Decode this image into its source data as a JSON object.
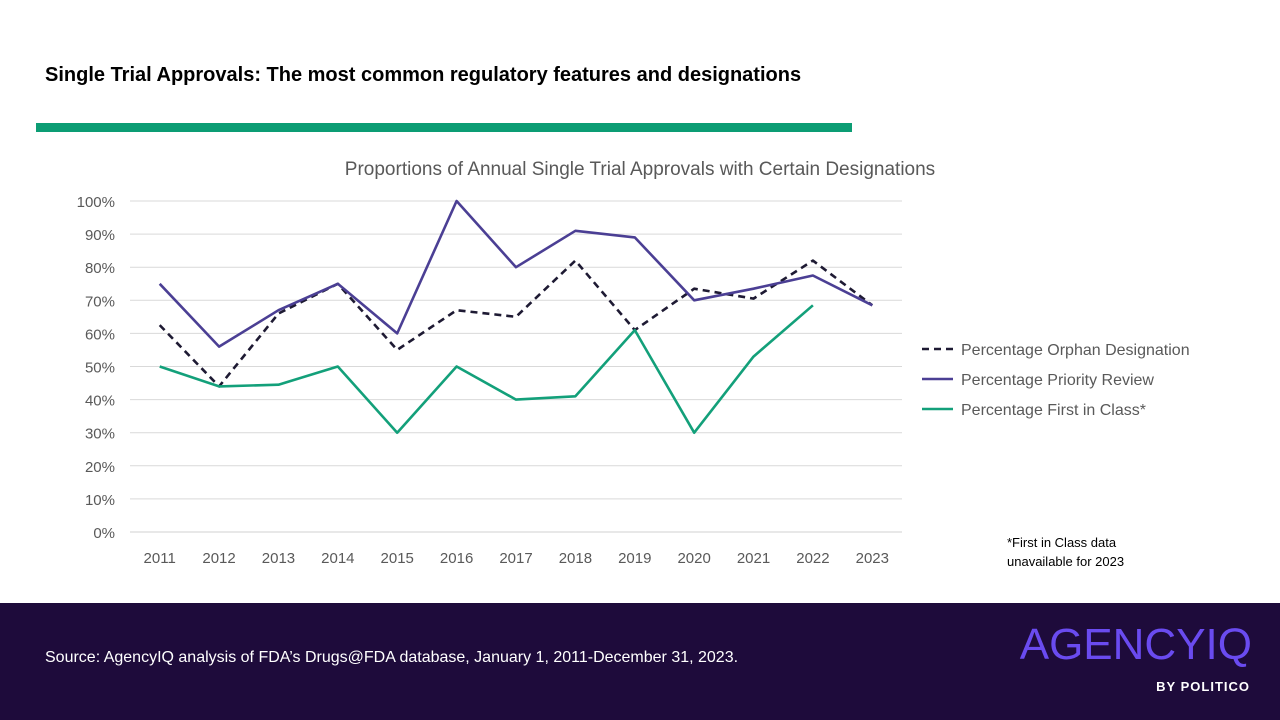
{
  "slide": {
    "title": "Single Trial Approvals: The most common regulatory features and designations",
    "accent_color": "#0c9d74"
  },
  "footnote": {
    "line1": "*First in Class data",
    "line2": "unavailable for 2023"
  },
  "footer": {
    "source": "Source: AgencyIQ analysis of FDA’s Drugs@FDA database, January 1, 2011-December 31, 2023.",
    "logo": "AGENCYIQ",
    "logo_sub": "BY POLITICO",
    "background": "#1e0b3b",
    "logo_color": "#6a4bf0"
  },
  "chart_data": {
    "type": "line",
    "title": "Proportions of Annual Single Trial Approvals with Certain Designations",
    "xlabel": "",
    "ylabel": "",
    "categories": [
      "2011",
      "2012",
      "2013",
      "2014",
      "2015",
      "2016",
      "2017",
      "2018",
      "2019",
      "2020",
      "2021",
      "2022",
      "2023"
    ],
    "ylim": [
      0,
      100
    ],
    "yticks": [
      0,
      10,
      20,
      30,
      40,
      50,
      60,
      70,
      80,
      90,
      100
    ],
    "ytick_labels": [
      "0%",
      "10%",
      "20%",
      "30%",
      "40%",
      "50%",
      "60%",
      "70%",
      "80%",
      "90%",
      "100%"
    ],
    "grid": true,
    "legend_position": "right",
    "series": [
      {
        "name": "Percentage Orphan Designation",
        "color": "#1e1a33",
        "style": "dashed",
        "values": [
          62.5,
          44,
          66,
          75,
          55,
          67,
          65,
          82,
          61,
          73.5,
          70.5,
          82,
          68.5
        ]
      },
      {
        "name": "Percentage Priority Review",
        "color": "#4b3f94",
        "style": "solid",
        "values": [
          75,
          56,
          67,
          75,
          60,
          100,
          80,
          91,
          89,
          70,
          73.5,
          77.5,
          68.5
        ]
      },
      {
        "name": "Percentage First in Class*",
        "color": "#13a07a",
        "style": "solid",
        "values": [
          50,
          44,
          44.5,
          50,
          30,
          50,
          40,
          41,
          61,
          30,
          53,
          68.5,
          null
        ]
      }
    ]
  }
}
